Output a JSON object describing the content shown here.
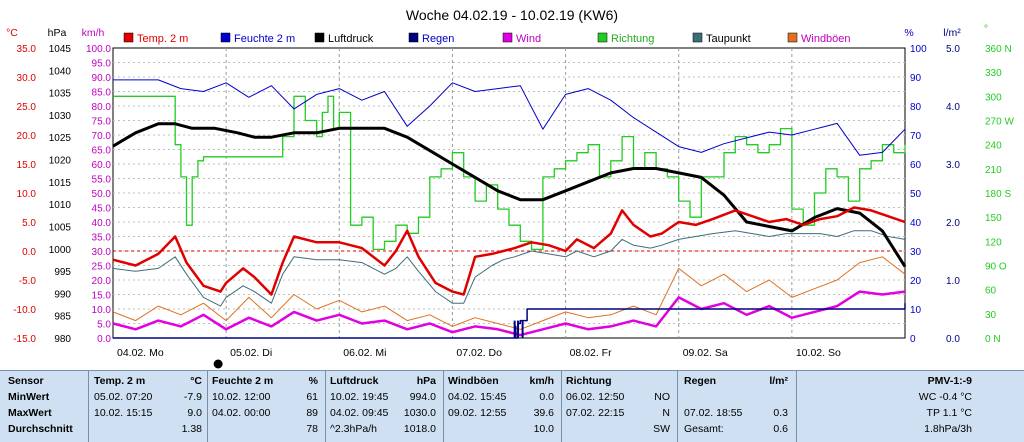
{
  "chart_data": {
    "type": "line",
    "title": "Woche 04.02.19 - 10.02.19 (KW6)",
    "legend": [
      {
        "name": "Temp. 2 m",
        "color": "#e00000"
      },
      {
        "name": "Feuchte  2 m",
        "color": "#0000cc"
      },
      {
        "name": "Luftdruck",
        "color": "#000000"
      },
      {
        "name": "Regen",
        "color": "#000080"
      },
      {
        "name": "Wind",
        "color": "#e000e0"
      },
      {
        "name": "Richtung",
        "color": "#22cc22"
      },
      {
        "name": "Taupunkt",
        "color": "#3c6e78"
      },
      {
        "name": "Windböen",
        "color": "#e07020"
      }
    ],
    "axes": {
      "temp": {
        "unit": "°C",
        "ticks": [
          "35.0",
          "30.0",
          "25.0",
          "20.0",
          "15.0",
          "10.0",
          "5.0",
          "0.0",
          "-5.0",
          "-10.0",
          "-15.0"
        ]
      },
      "pressure": {
        "unit": "hPa",
        "ticks": [
          "1045",
          "1040",
          "1035",
          "1030",
          "1025",
          "1020",
          "1015",
          "1010",
          "1005",
          "1000",
          "995",
          "990",
          "985",
          "980"
        ]
      },
      "wind": {
        "unit": "km/h",
        "ticks": [
          "100.0",
          "95.0",
          "90.0",
          "85.0",
          "80.0",
          "75.0",
          "70.0",
          "65.0",
          "60.0",
          "55.0",
          "50.0",
          "45.0",
          "40.0",
          "35.0",
          "30.0",
          "25.0",
          "20.0",
          "15.0",
          "10.0",
          "5.0",
          "0.0"
        ]
      },
      "humidity": {
        "unit": "%",
        "ticks": [
          "100",
          "90",
          "80",
          "70",
          "60",
          "50",
          "40",
          "30",
          "20",
          "10",
          "0"
        ]
      },
      "rain": {
        "unit": "l/m²",
        "ticks": [
          "5.0",
          "4.0",
          "3.0",
          "2.0",
          "1.0",
          "0.0"
        ]
      },
      "direction": {
        "unit": "°",
        "ticks": [
          "360 N",
          "330",
          "300",
          "270 W",
          "240",
          "210",
          "180 S",
          "150",
          "120",
          "90 O",
          "60",
          "30",
          "0 N"
        ]
      }
    },
    "x_labels": [
      "04.02. Mo",
      "05.02. Di",
      "06.02. Mi",
      "07.02. Do",
      "08.02. Fr",
      "09.02. Sa",
      "10.02. So"
    ],
    "x_range_days": [
      0,
      7
    ],
    "series": [
      {
        "name": "Temp. 2 m",
        "axis": "temp",
        "x": [
          0,
          0.2,
          0.4,
          0.55,
          0.65,
          0.8,
          0.95,
          1.0,
          1.15,
          1.25,
          1.4,
          1.5,
          1.6,
          1.8,
          2.0,
          2.2,
          2.4,
          2.5,
          2.6,
          2.7,
          2.85,
          3.0,
          3.1,
          3.2,
          3.35,
          3.45,
          3.55,
          3.7,
          3.85,
          4.0,
          4.1,
          4.25,
          4.4,
          4.5,
          4.6,
          4.75,
          4.85,
          5.0,
          5.15,
          5.3,
          5.5,
          5.65,
          5.8,
          5.95,
          6.1,
          6.25,
          6.4,
          6.55,
          6.7,
          6.85,
          7.0
        ],
        "y": [
          -1.5,
          -2.5,
          -0.5,
          2.5,
          -2,
          -6,
          -7,
          -5.5,
          -3,
          -4.5,
          -7.5,
          -2,
          2.5,
          1.5,
          1.5,
          0.5,
          -2.5,
          0,
          3.5,
          -1,
          -5.5,
          -7,
          -7.5,
          -1,
          -0.5,
          0,
          0.5,
          1.5,
          1,
          0,
          2,
          0.5,
          3,
          7,
          4.5,
          2.5,
          3,
          5,
          4.5,
          5.5,
          7,
          6,
          5,
          5.5,
          4.5,
          5.5,
          6,
          7.5,
          7,
          6,
          5
        ]
      },
      {
        "name": "Taupunkt",
        "axis": "temp",
        "x": [
          0,
          0.2,
          0.4,
          0.55,
          0.65,
          0.8,
          0.95,
          1.0,
          1.15,
          1.25,
          1.4,
          1.5,
          1.6,
          1.8,
          2.0,
          2.2,
          2.4,
          2.5,
          2.6,
          2.7,
          2.85,
          3.0,
          3.1,
          3.2,
          3.35,
          3.45,
          3.55,
          3.7,
          3.85,
          4.0,
          4.1,
          4.25,
          4.4,
          4.5,
          4.6,
          4.75,
          4.85,
          5.0,
          5.15,
          5.3,
          5.5,
          5.65,
          5.8,
          5.95,
          6.1,
          6.25,
          6.4,
          6.55,
          6.7,
          6.85,
          7.0
        ],
        "y": [
          -3,
          -3.5,
          -3,
          -1,
          -4,
          -8,
          -9.5,
          -8,
          -6,
          -7,
          -9,
          -4,
          -1,
          -1.5,
          -1.5,
          -2,
          -4,
          -3,
          -1,
          -3.5,
          -7,
          -9,
          -9,
          -4.5,
          -2.5,
          -1.5,
          -1,
          0,
          -0.5,
          -1,
          0,
          -1,
          0,
          2,
          1,
          0.5,
          1,
          2,
          2.5,
          3,
          3.5,
          3,
          2.5,
          3,
          3,
          3,
          2.5,
          3.5,
          3.5,
          2.5,
          2
        ]
      },
      {
        "name": "Luftdruck",
        "axis": "pressure",
        "x": [
          0,
          0.2,
          0.4,
          0.55,
          0.7,
          0.9,
          1.1,
          1.25,
          1.4,
          1.6,
          1.8,
          2.0,
          2.2,
          2.4,
          2.6,
          2.8,
          3.0,
          3.2,
          3.4,
          3.6,
          3.8,
          4.0,
          4.2,
          4.4,
          4.6,
          4.8,
          5.0,
          5.2,
          5.4,
          5.6,
          5.8,
          6.0,
          6.2,
          6.4,
          6.6,
          6.8,
          7.0
        ],
        "y": [
          1023,
          1026,
          1028,
          1028,
          1027,
          1027,
          1026,
          1025,
          1025,
          1026,
          1026,
          1027,
          1027,
          1027,
          1025,
          1022,
          1019,
          1016,
          1013,
          1011,
          1011,
          1013,
          1015,
          1017,
          1018,
          1018,
          1017,
          1016,
          1012,
          1006,
          1005,
          1004,
          1007,
          1009,
          1008,
          1004,
          996
        ]
      },
      {
        "name": "Feuchte  2 m",
        "axis": "humidity",
        "x": [
          0,
          0.2,
          0.4,
          0.6,
          0.8,
          1.0,
          1.2,
          1.4,
          1.6,
          1.8,
          2.0,
          2.2,
          2.4,
          2.6,
          2.8,
          3.0,
          3.2,
          3.4,
          3.6,
          3.8,
          4.0,
          4.2,
          4.4,
          4.6,
          4.8,
          5.0,
          5.2,
          5.4,
          5.6,
          5.8,
          6.0,
          6.2,
          6.4,
          6.6,
          6.8,
          7.0
        ],
        "y": [
          89,
          89,
          89,
          86,
          85,
          88,
          83,
          87,
          79,
          84,
          86,
          82,
          85,
          73,
          80,
          88,
          85,
          86,
          87,
          72,
          84,
          86,
          82,
          76,
          71,
          66,
          64,
          67,
          69,
          71,
          70,
          72,
          74,
          63,
          64,
          72
        ]
      },
      {
        "name": "Regen",
        "axis": "rain",
        "x": [
          0,
          3.5,
          3.55,
          3.56,
          3.58,
          3.6,
          3.62,
          3.66,
          7.0
        ],
        "y": [
          0,
          0,
          0.2,
          0,
          0.25,
          0.3,
          0.3,
          0.5,
          0.6
        ]
      },
      {
        "name": "Richtung",
        "axis": "direction",
        "x": [
          0,
          0.4,
          0.55,
          0.6,
          0.65,
          0.7,
          0.75,
          0.8,
          1.0,
          1.2,
          1.4,
          1.5,
          1.6,
          1.7,
          1.8,
          1.85,
          1.9,
          1.95,
          2.0,
          2.1,
          2.2,
          2.3,
          2.4,
          2.5,
          2.6,
          2.7,
          2.8,
          2.9,
          3.0,
          3.1,
          3.2,
          3.3,
          3.4,
          3.5,
          3.6,
          3.7,
          3.8,
          3.9,
          4.0,
          4.1,
          4.2,
          4.3,
          4.4,
          4.5,
          4.6,
          4.7,
          4.8,
          4.9,
          5.0,
          5.1,
          5.2,
          5.3,
          5.4,
          5.5,
          5.6,
          5.7,
          5.8,
          5.9,
          6.0,
          6.1,
          6.2,
          6.3,
          6.4,
          6.5,
          6.6,
          6.7,
          6.8,
          6.9,
          7.0
        ],
        "y": [
          300,
          300,
          240,
          200,
          140,
          200,
          220,
          225,
          225,
          225,
          225,
          250,
          300,
          270,
          250,
          280,
          300,
          260,
          280,
          140,
          150,
          110,
          120,
          140,
          130,
          150,
          200,
          210,
          230,
          200,
          170,
          190,
          160,
          140,
          120,
          110,
          200,
          210,
          220,
          230,
          240,
          200,
          220,
          250,
          210,
          230,
          210,
          200,
          170,
          150,
          200,
          200,
          230,
          250,
          240,
          230,
          240,
          260,
          160,
          140,
          180,
          210,
          200,
          170,
          210,
          220,
          240,
          230,
          240
        ]
      },
      {
        "name": "Wind",
        "axis": "wind",
        "x": [
          0,
          0.2,
          0.4,
          0.6,
          0.8,
          1.0,
          1.2,
          1.4,
          1.6,
          1.8,
          2.0,
          2.2,
          2.4,
          2.6,
          2.8,
          3.0,
          3.2,
          3.4,
          3.6,
          3.8,
          4.0,
          4.2,
          4.4,
          4.6,
          4.8,
          5.0,
          5.2,
          5.4,
          5.6,
          5.8,
          6.0,
          6.2,
          6.4,
          6.6,
          6.8,
          7.0
        ],
        "y": [
          5,
          3,
          6,
          4,
          8,
          3,
          7,
          4,
          9,
          6,
          8,
          5,
          6,
          3,
          5,
          2,
          4,
          3,
          1,
          3,
          5,
          3,
          4,
          6,
          4,
          14,
          10,
          12,
          8,
          11,
          7,
          9,
          11,
          16,
          15,
          16
        ]
      },
      {
        "name": "Windböen",
        "axis": "wind",
        "x": [
          0,
          0.2,
          0.4,
          0.6,
          0.8,
          1.0,
          1.2,
          1.4,
          1.6,
          1.8,
          2.0,
          2.2,
          2.4,
          2.6,
          2.8,
          3.0,
          3.2,
          3.4,
          3.6,
          3.8,
          4.0,
          4.2,
          4.4,
          4.6,
          4.8,
          5.0,
          5.2,
          5.4,
          5.6,
          5.8,
          6.0,
          6.2,
          6.4,
          6.6,
          6.8,
          7.0
        ],
        "y": [
          9,
          6,
          11,
          8,
          12,
          6,
          14,
          7,
          15,
          10,
          13,
          9,
          11,
          6,
          8,
          4,
          7,
          5,
          3,
          6,
          9,
          7,
          8,
          11,
          8,
          24,
          18,
          22,
          16,
          20,
          14,
          17,
          20,
          26,
          28,
          22
        ]
      }
    ]
  },
  "table": {
    "col0": {
      "header": "Sensor",
      "rows": [
        "MinWert",
        "MaxWert",
        "Durchschnitt"
      ]
    },
    "temp": {
      "header": "Temp. 2 m",
      "unit": "°C",
      "rows": [
        {
          "t": "05.02.  07:20",
          "v": "-7.9"
        },
        {
          "t": "10.02.  15:15",
          "v": "9.0"
        },
        {
          "t": "",
          "v": "1.38"
        }
      ]
    },
    "feuchte": {
      "header": "Feuchte  2 m",
      "unit": "%",
      "rows": [
        {
          "t": "10.02.  12:00",
          "v": "61"
        },
        {
          "t": "04.02.  00:00",
          "v": "89"
        },
        {
          "t": "",
          "v": "78"
        }
      ]
    },
    "luftdruck": {
      "header": "Luftdruck",
      "unit": "hPa",
      "rows": [
        {
          "t": "10.02.  19:45",
          "v": "994.0"
        },
        {
          "t": "04.02.  09:45",
          "v": "1030.0"
        },
        {
          "t": "^2.3hPa/h",
          "v": "1018.0"
        }
      ]
    },
    "windboeen": {
      "header": "Windböen",
      "unit": "km/h",
      "rows": [
        {
          "t": "04.02.  15:45",
          "v": "0.0"
        },
        {
          "t": "09.02.  12:55",
          "v": "39.6"
        },
        {
          "t": "",
          "v": "10.0"
        }
      ]
    },
    "richtung": {
      "header": "Richtung",
      "unit": "",
      "rows": [
        {
          "t": "06.02.  12:50",
          "v": "NO"
        },
        {
          "t": "07.02.  22:15",
          "v": "N"
        },
        {
          "t": "",
          "v": "SW"
        }
      ]
    },
    "regen": {
      "header": "Regen",
      "unit": "l/m²",
      "rows": [
        {
          "t": "",
          "v": ""
        },
        {
          "t": "07.02.  18:55",
          "v": "0.3"
        },
        {
          "t": "Gesamt:",
          "v": "0.6"
        }
      ]
    },
    "pmv": {
      "header": "PMV-1:-9",
      "rows": [
        "WC -0.4 °C",
        "TP 1.1 °C",
        "1.8hPa/3h"
      ]
    }
  }
}
